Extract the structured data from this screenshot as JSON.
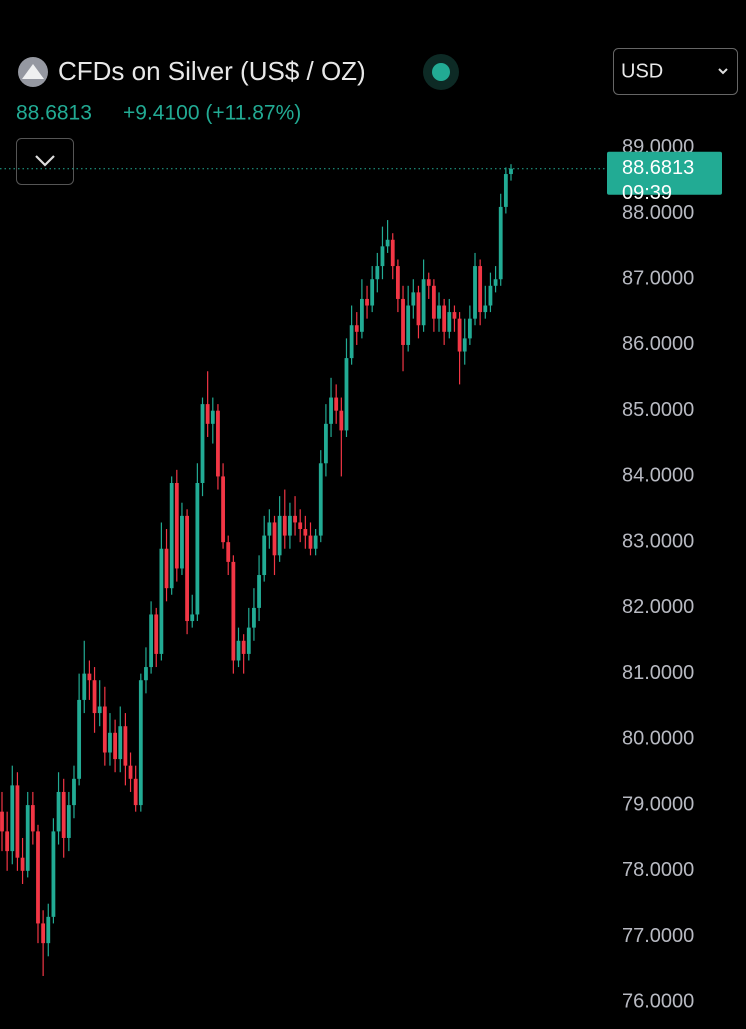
{
  "header": {
    "title": "CFDs on Silver (US$ / OZ)",
    "change": "+9.4100 (+11.87%)",
    "currency": "USD"
  },
  "chart_data": {
    "type": "candlestick",
    "countdown": "09:39",
    "up_color": "#22ab94",
    "down_color": "#f23645",
    "ylim": [
      75.67,
      89.27
    ],
    "yticks": [
      {
        "value": 76,
        "label": "76.0000"
      },
      {
        "value": 77,
        "label": "77.0000"
      },
      {
        "value": 78,
        "label": "78.0000"
      },
      {
        "value": 79,
        "label": "79.0000"
      },
      {
        "value": 80,
        "label": "80.0000"
      },
      {
        "value": 81,
        "label": "81.0000"
      },
      {
        "value": 82,
        "label": "82.0000"
      },
      {
        "value": 83,
        "label": "83.0000"
      },
      {
        "value": 84,
        "label": "84.0000"
      },
      {
        "value": 85,
        "label": "85.0000"
      },
      {
        "value": 86,
        "label": "86.0000"
      },
      {
        "value": 87,
        "label": "87.0000"
      },
      {
        "value": 88,
        "label": "88.0000"
      },
      {
        "value": 89,
        "label": "89.0000"
      }
    ],
    "open": [
      78.9,
      78.6,
      78.3,
      79.3,
      78.2,
      78.0,
      79.0,
      78.6,
      77.2,
      76.9,
      77.3,
      78.6,
      79.2,
      78.5,
      79.0,
      79.4,
      80.6,
      81.0,
      80.9,
      80.4,
      80.5,
      79.8,
      80.1,
      79.7,
      80.2,
      79.6,
      79.4,
      79.0,
      80.9,
      81.1,
      81.9,
      81.3,
      82.9,
      82.3,
      83.9,
      82.6,
      83.4,
      81.8,
      81.9,
      83.9,
      85.1,
      84.8,
      85.0,
      84.0,
      83.0,
      82.7,
      81.2,
      81.5,
      81.3,
      81.7,
      82.0,
      82.5,
      83.1,
      83.3,
      82.8,
      83.4,
      83.1,
      83.4,
      83.3,
      83.2,
      83.1,
      82.9,
      83.1,
      84.2,
      84.8,
      85.2,
      85.0,
      84.7,
      85.8,
      86.3,
      86.2,
      86.7,
      86.6,
      87.0,
      87.2,
      87.5,
      87.6,
      87.2,
      86.7,
      86.0,
      86.6,
      86.8,
      86.3,
      87.0,
      86.9,
      86.4,
      86.6,
      86.2,
      86.5,
      86.4,
      85.9,
      86.1,
      86.4,
      87.2,
      86.5,
      86.6,
      86.9,
      87.0,
      88.1,
      88.6
    ],
    "high": [
      79.2,
      78.9,
      79.6,
      79.5,
      78.5,
      79.2,
      79.2,
      78.7,
      77.4,
      77.5,
      78.8,
      79.5,
      79.4,
      79.2,
      79.6,
      81.0,
      81.5,
      81.2,
      81.1,
      80.9,
      80.8,
      80.4,
      80.3,
      80.5,
      80.4,
      79.8,
      79.6,
      81.0,
      81.4,
      82.1,
      82.0,
      83.3,
      83.2,
      84.0,
      84.1,
      83.6,
      83.5,
      82.2,
      84.2,
      85.2,
      85.6,
      85.2,
      85.1,
      84.2,
      83.1,
      82.8,
      81.7,
      81.6,
      82.0,
      82.3,
      82.8,
      83.4,
      83.5,
      83.4,
      83.7,
      83.8,
      83.6,
      83.7,
      83.5,
      83.4,
      83.3,
      83.2,
      84.4,
      85.1,
      85.5,
      85.4,
      85.2,
      86.1,
      86.6,
      86.5,
      87.0,
      86.9,
      87.2,
      87.4,
      87.8,
      87.9,
      87.7,
      87.3,
      86.9,
      86.9,
      87.0,
      86.9,
      87.3,
      87.1,
      87.0,
      86.8,
      86.7,
      86.7,
      86.6,
      86.5,
      86.4,
      86.6,
      87.4,
      87.3,
      86.9,
      87.1,
      87.2,
      88.3,
      88.7,
      88.75
    ],
    "low": [
      78.3,
      78.0,
      78.1,
      78.0,
      77.8,
      77.9,
      78.4,
      76.9,
      76.4,
      76.7,
      77.2,
      78.4,
      78.2,
      78.3,
      78.8,
      79.3,
      80.4,
      80.6,
      80.1,
      80.2,
      79.6,
      79.6,
      79.5,
      79.5,
      79.3,
      79.2,
      78.9,
      78.9,
      80.7,
      81.0,
      81.1,
      81.2,
      82.1,
      82.2,
      82.4,
      82.5,
      81.6,
      81.7,
      81.8,
      83.7,
      84.6,
      84.5,
      83.8,
      82.9,
      82.5,
      81.0,
      81.1,
      81.0,
      81.2,
      81.5,
      81.8,
      82.4,
      82.9,
      82.5,
      82.7,
      82.9,
      82.9,
      83.1,
      83.0,
      82.9,
      82.8,
      82.8,
      83.0,
      84.0,
      84.6,
      84.8,
      84.0,
      84.6,
      85.7,
      86.0,
      86.1,
      86.4,
      86.5,
      86.8,
      87.0,
      87.4,
      87.0,
      86.5,
      85.6,
      85.9,
      86.4,
      86.1,
      86.2,
      86.7,
      86.2,
      86.2,
      86.0,
      86.1,
      86.2,
      85.4,
      85.7,
      86.0,
      86.3,
      86.3,
      86.4,
      86.5,
      86.8,
      86.9,
      88.0,
      88.5
    ],
    "close": [
      78.6,
      78.3,
      79.3,
      78.2,
      78.0,
      79.0,
      78.6,
      77.2,
      76.9,
      77.3,
      78.6,
      79.2,
      78.5,
      79.0,
      79.4,
      80.6,
      81.0,
      80.9,
      80.4,
      80.5,
      79.8,
      80.1,
      79.7,
      80.2,
      79.6,
      79.4,
      79.0,
      80.9,
      81.1,
      81.9,
      81.3,
      82.9,
      82.3,
      83.9,
      82.6,
      83.4,
      81.8,
      81.9,
      83.9,
      85.1,
      84.8,
      85.0,
      84.0,
      83.0,
      82.7,
      81.2,
      81.5,
      81.3,
      81.7,
      82.0,
      82.5,
      83.1,
      83.3,
      82.8,
      83.4,
      83.1,
      83.4,
      83.3,
      83.2,
      83.1,
      82.9,
      83.1,
      84.2,
      84.8,
      85.2,
      85.0,
      84.7,
      85.8,
      86.3,
      86.2,
      86.7,
      86.6,
      87.0,
      87.2,
      87.5,
      87.6,
      87.2,
      86.7,
      86.0,
      86.6,
      86.8,
      86.3,
      87.0,
      86.9,
      86.4,
      86.6,
      86.2,
      86.5,
      86.4,
      85.9,
      86.1,
      86.4,
      87.2,
      86.5,
      86.6,
      86.9,
      87.0,
      88.1,
      88.6,
      88.6813
    ]
  }
}
